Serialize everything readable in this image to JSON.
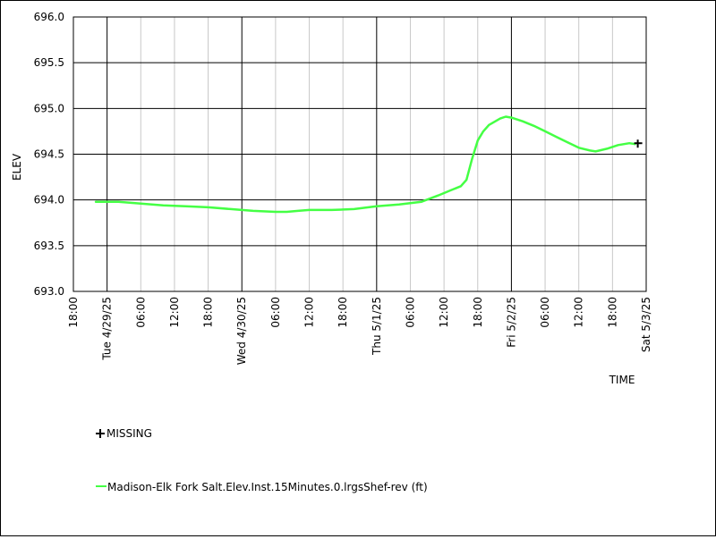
{
  "chart_data": {
    "type": "line",
    "xlabel": "TIME",
    "ylabel": "ELEV",
    "ylim": [
      693.0,
      696.0
    ],
    "xlim": [
      "2025-04-28T18:00",
      "2025-05-03T00:00"
    ],
    "y_ticks": [
      "693.0",
      "693.5",
      "694.0",
      "694.5",
      "695.0",
      "695.5",
      "696.0"
    ],
    "x_ticks": [
      {
        "t": "2025-04-28T18:00",
        "label": "18:00",
        "major": false
      },
      {
        "t": "2025-04-29T00:00",
        "label": "Tue 4/29/25",
        "major": true
      },
      {
        "t": "2025-04-29T06:00",
        "label": "06:00",
        "major": false
      },
      {
        "t": "2025-04-29T12:00",
        "label": "12:00",
        "major": false
      },
      {
        "t": "2025-04-29T18:00",
        "label": "18:00",
        "major": false
      },
      {
        "t": "2025-04-30T00:00",
        "label": "Wed 4/30/25",
        "major": true
      },
      {
        "t": "2025-04-30T06:00",
        "label": "06:00",
        "major": false
      },
      {
        "t": "2025-04-30T12:00",
        "label": "12:00",
        "major": false
      },
      {
        "t": "2025-04-30T18:00",
        "label": "18:00",
        "major": false
      },
      {
        "t": "2025-05-01T00:00",
        "label": "Thu 5/1/25",
        "major": true
      },
      {
        "t": "2025-05-01T06:00",
        "label": "06:00",
        "major": false
      },
      {
        "t": "2025-05-01T12:00",
        "label": "12:00",
        "major": false
      },
      {
        "t": "2025-05-01T18:00",
        "label": "18:00",
        "major": false
      },
      {
        "t": "2025-05-02T00:00",
        "label": "Fri 5/2/25",
        "major": true
      },
      {
        "t": "2025-05-02T06:00",
        "label": "06:00",
        "major": false
      },
      {
        "t": "2025-05-02T12:00",
        "label": "12:00",
        "major": false
      },
      {
        "t": "2025-05-02T18:00",
        "label": "18:00",
        "major": false
      },
      {
        "t": "2025-05-03T00:00",
        "label": "Sat 5/3/25",
        "major": true
      }
    ],
    "grid": true,
    "series": [
      {
        "name": "Madison-Elk Fork Salt.Elev.Inst.15Minutes.0.lrgsShef-rev (ft)",
        "color": "#44ff44",
        "points": [
          [
            "2025-04-28T22:00",
            693.98
          ],
          [
            "2025-04-29T02:00",
            693.98
          ],
          [
            "2025-04-29T06:00",
            693.96
          ],
          [
            "2025-04-29T10:00",
            693.94
          ],
          [
            "2025-04-29T14:00",
            693.93
          ],
          [
            "2025-04-29T18:00",
            693.92
          ],
          [
            "2025-04-29T22:00",
            693.9
          ],
          [
            "2025-04-30T02:00",
            693.88
          ],
          [
            "2025-04-30T06:00",
            693.87
          ],
          [
            "2025-04-30T08:00",
            693.87
          ],
          [
            "2025-04-30T10:00",
            693.88
          ],
          [
            "2025-04-30T12:00",
            693.89
          ],
          [
            "2025-04-30T16:00",
            693.89
          ],
          [
            "2025-04-30T20:00",
            693.9
          ],
          [
            "2025-05-01T00:00",
            693.93
          ],
          [
            "2025-05-01T04:00",
            693.95
          ],
          [
            "2025-05-01T08:00",
            693.98
          ],
          [
            "2025-05-01T11:00",
            694.05
          ],
          [
            "2025-05-01T13:00",
            694.1
          ],
          [
            "2025-05-01T15:00",
            694.15
          ],
          [
            "2025-05-01T16:00",
            694.22
          ],
          [
            "2025-05-01T17:00",
            694.45
          ],
          [
            "2025-05-01T18:00",
            694.65
          ],
          [
            "2025-05-01T19:00",
            694.75
          ],
          [
            "2025-05-01T20:00",
            694.82
          ],
          [
            "2025-05-01T22:00",
            694.89
          ],
          [
            "2025-05-01T23:00",
            694.91
          ],
          [
            "2025-05-02T00:00",
            694.9
          ],
          [
            "2025-05-02T02:00",
            694.86
          ],
          [
            "2025-05-02T04:00",
            694.81
          ],
          [
            "2025-05-02T06:00",
            694.75
          ],
          [
            "2025-05-02T08:00",
            694.69
          ],
          [
            "2025-05-02T10:00",
            694.63
          ],
          [
            "2025-05-02T12:00",
            694.57
          ],
          [
            "2025-05-02T14:00",
            694.54
          ],
          [
            "2025-05-02T15:00",
            694.53
          ],
          [
            "2025-05-02T17:00",
            694.56
          ],
          [
            "2025-05-02T19:00",
            694.6
          ],
          [
            "2025-05-02T21:00",
            694.62
          ],
          [
            "2025-05-02T22:00",
            694.61
          ]
        ]
      }
    ],
    "missing": {
      "label": "MISSING",
      "points": [
        [
          "2025-05-02T22:30",
          694.62
        ]
      ]
    }
  }
}
